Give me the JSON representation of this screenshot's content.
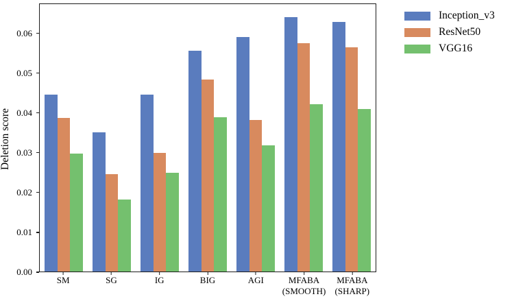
{
  "figure": {
    "background": "#ffffff",
    "axis_color": "#1c1c1c"
  },
  "chart_data": {
    "type": "bar",
    "title": "",
    "xlabel": "",
    "ylabel": "Deletion score",
    "categories": [
      "SM",
      "SG",
      "IG",
      "BIG",
      "AGI",
      "MFABA (SMOOTH)",
      "MFABA (SHARP)"
    ],
    "categories_display": [
      [
        "SM"
      ],
      [
        "SG"
      ],
      [
        "IG"
      ],
      [
        "BIG"
      ],
      [
        "AGI"
      ],
      [
        "MFABA",
        "(SMOOTH)"
      ],
      [
        "MFABA",
        "(SHARP)"
      ]
    ],
    "series": [
      {
        "name": "Inception_v3",
        "color": "#5a7cbe",
        "values": [
          0.0446,
          0.0352,
          0.0446,
          0.0558,
          0.0592,
          0.0643,
          0.063
        ]
      },
      {
        "name": "ResNet50",
        "color": "#d88a5e",
        "values": [
          0.0388,
          0.0246,
          0.03,
          0.0485,
          0.0383,
          0.0577,
          0.0566
        ]
      },
      {
        "name": "VGG16",
        "color": "#74c06e",
        "values": [
          0.0297,
          0.0181,
          0.025,
          0.039,
          0.0318,
          0.0423,
          0.041
        ]
      }
    ],
    "ylim": [
      0,
      0.0675
    ],
    "yticks": [
      "0.00",
      "0.01",
      "0.02",
      "0.03",
      "0.04",
      "0.05",
      "0.06"
    ],
    "ytick_values": [
      0,
      0.01,
      0.02,
      0.03,
      0.04,
      0.05,
      0.06
    ],
    "grid": false,
    "legend_position": "upper-right-outside"
  }
}
